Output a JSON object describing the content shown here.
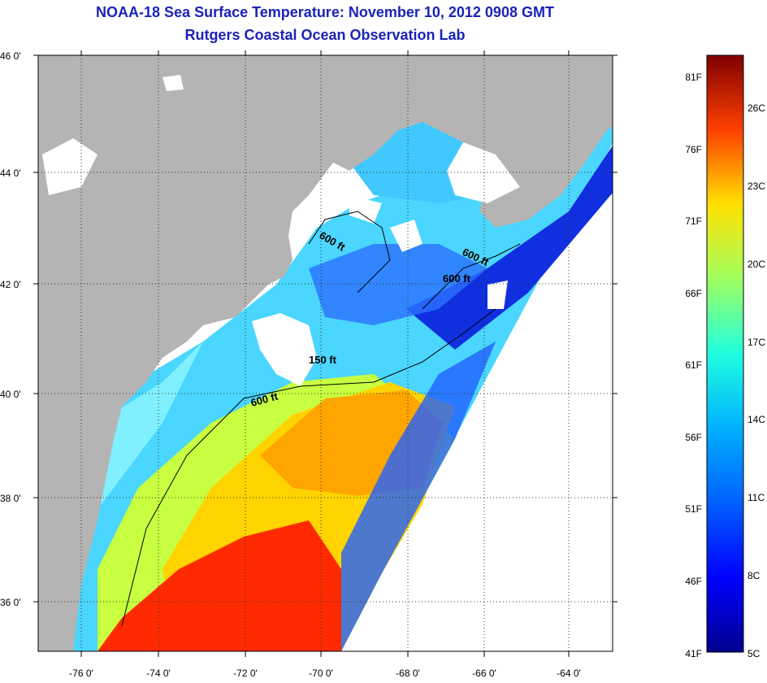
{
  "title": "NOAA-18 Sea Surface Temperature:  November 10, 2012 0908 GMT",
  "subtitle": "Rutgers Coastal Ocean Observation Lab",
  "lat_labels": [
    "46 0'",
    "44 0'",
    "42 0'",
    "40 0'",
    "38 0'",
    "36 0'"
  ],
  "lon_labels": [
    "-76 0'",
    "-74 0'",
    "-72 0'",
    "-70 0'",
    "-68 0'",
    "-66 0'",
    "-64 0'"
  ],
  "depth_labels": [
    "600 ft",
    "600 ft",
    "600 ft",
    "150 ft",
    "600 ft"
  ],
  "colorbar": {
    "fahrenheit": [
      "81F",
      "76F",
      "71F",
      "66F",
      "61F",
      "56F",
      "51F",
      "46F",
      "41F"
    ],
    "celsius": [
      "26C",
      "23C",
      "20C",
      "17C",
      "14C",
      "11C",
      "8C",
      "5C"
    ],
    "colors": [
      "#7f0000",
      "#ff0000",
      "#ff8000",
      "#ffff00",
      "#80ff80",
      "#00ffff",
      "#0080ff",
      "#0000ff",
      "#00008f"
    ]
  },
  "colors": {
    "land": "#b4b4b4",
    "cloud": "#ffffff",
    "title": "#1a23b8"
  }
}
